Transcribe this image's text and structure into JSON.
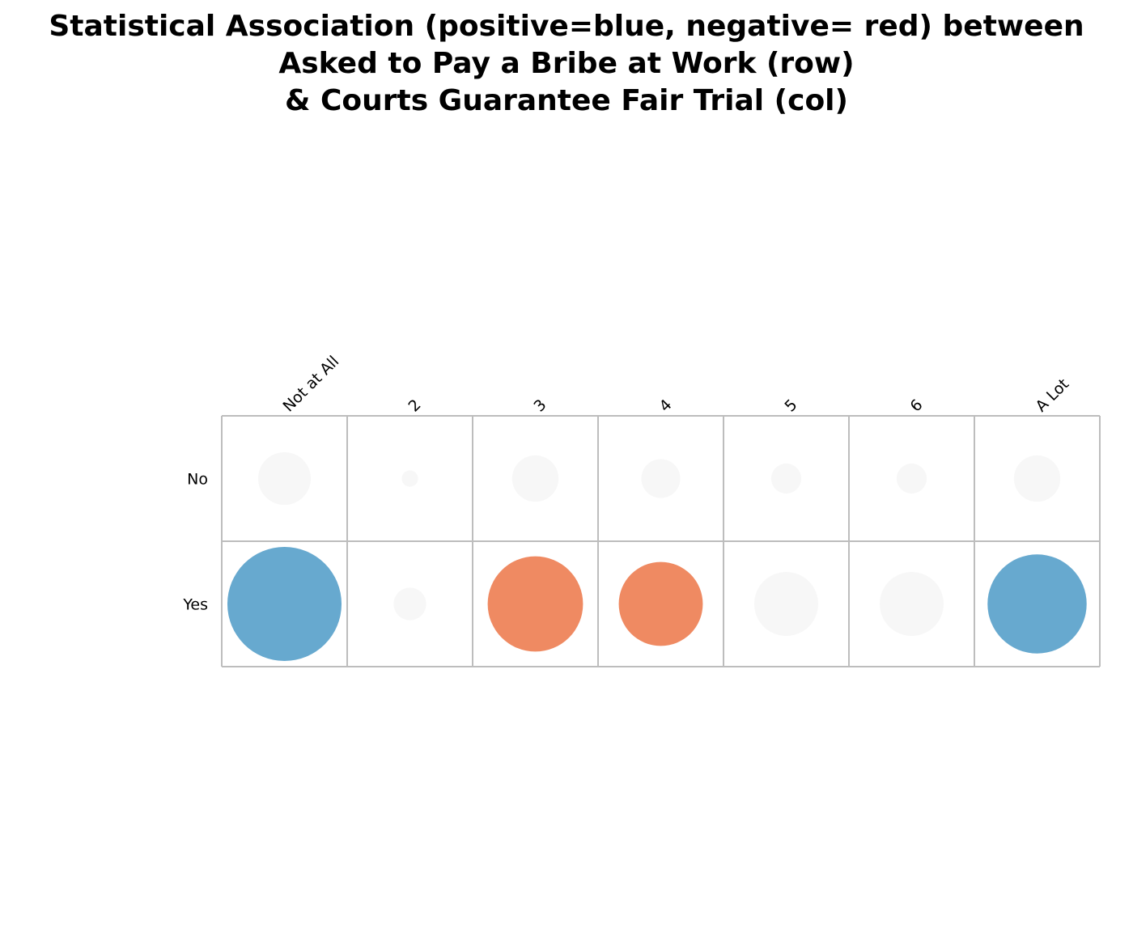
{
  "chart_data": {
    "type": "balloon",
    "title_lines": [
      "Statistical Association (positive=blue, negative= red) between",
      "Asked to Pay a Bribe at Work (row)",
      "& Courts Guarantee Fair Trial (col)"
    ],
    "rows": [
      "No",
      "Yes"
    ],
    "columns": [
      "Not at All",
      "2",
      "3",
      "4",
      "5",
      "6",
      "A Lot"
    ],
    "cells": [
      [
        {
          "size": 0.42,
          "sign": "neutral"
        },
        {
          "size": 0.13,
          "sign": "neutral"
        },
        {
          "size": 0.37,
          "sign": "neutral"
        },
        {
          "size": 0.31,
          "sign": "neutral"
        },
        {
          "size": 0.24,
          "sign": "neutral"
        },
        {
          "size": 0.24,
          "sign": "neutral"
        },
        {
          "size": 0.37,
          "sign": "neutral"
        }
      ],
      [
        {
          "size": 0.91,
          "sign": "positive"
        },
        {
          "size": 0.26,
          "sign": "neutral"
        },
        {
          "size": 0.76,
          "sign": "negative"
        },
        {
          "size": 0.67,
          "sign": "negative"
        },
        {
          "size": 0.51,
          "sign": "neutral"
        },
        {
          "size": 0.51,
          "sign": "neutral"
        },
        {
          "size": 0.79,
          "sign": "positive"
        }
      ]
    ],
    "colors": {
      "positive": "#67a9cf",
      "negative": "#ef8a62",
      "neutral": "#f7f7f7",
      "grid": "#bdbdbd"
    }
  }
}
